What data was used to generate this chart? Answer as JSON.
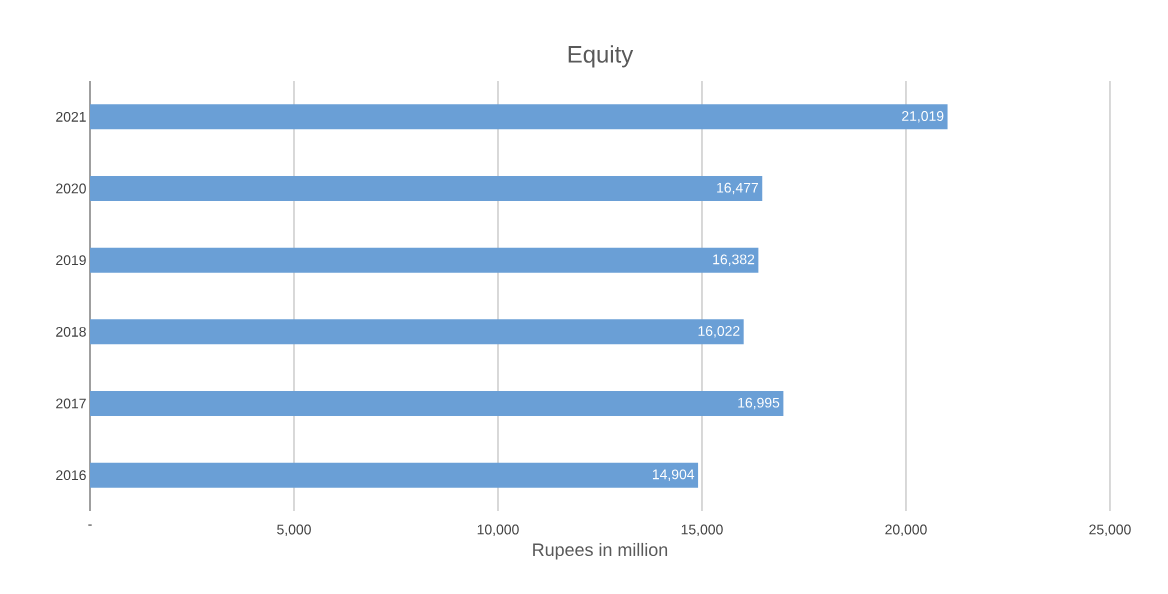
{
  "chart_data": {
    "type": "bar",
    "orientation": "horizontal",
    "title": "Equity",
    "xlabel": "Rupees in million",
    "categories": [
      "2021",
      "2020",
      "2019",
      "2018",
      "2017",
      "2016"
    ],
    "values": [
      21019,
      16477,
      16382,
      16022,
      16995,
      14904
    ],
    "value_labels": [
      "21,019",
      "16,477",
      "16,382",
      "16,022",
      "16,995",
      "14,904"
    ],
    "color": "#6a9fd6",
    "xlim": [
      0,
      25000
    ],
    "xticks": [
      {
        "value": 0,
        "label": "-"
      },
      {
        "value": 5000,
        "label": "5,000"
      },
      {
        "value": 10000,
        "label": "10,000"
      },
      {
        "value": 15000,
        "label": "15,000"
      },
      {
        "value": 20000,
        "label": "20,000"
      },
      {
        "value": 25000,
        "label": "25,000"
      }
    ],
    "grid": "x"
  }
}
